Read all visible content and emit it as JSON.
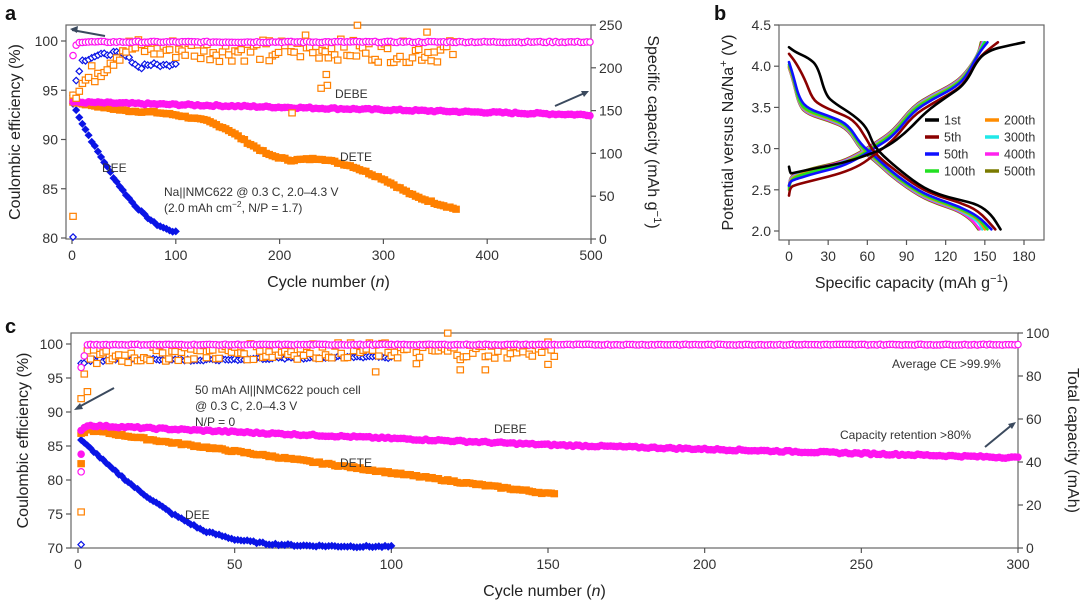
{
  "panels": {
    "a": {
      "label": "a"
    },
    "b": {
      "label": "b"
    },
    "c": {
      "label": "c"
    }
  },
  "colors": {
    "DEE": "#0a14e6",
    "DETE": "#ff8000",
    "DEBE": "#ff14f0",
    "arrow": "#3b4a5e"
  },
  "chart_data": [
    {
      "id": "a",
      "type": "scatter",
      "title": "",
      "xlabel": "Cycle number (n)",
      "ylabel_left": "Coulombic efficiency (%)",
      "ylabel_right": "Specific capacity (mAh g⁻¹)",
      "xlim": [
        0,
        500
      ],
      "ylim_left": [
        80,
        101.5
      ],
      "ylim_right": [
        0,
        250
      ],
      "xticks": [
        0,
        100,
        200,
        300,
        400,
        500
      ],
      "yticks_left": [
        80,
        85,
        90,
        95,
        100
      ],
      "yticks_right": [
        0,
        50,
        100,
        150,
        200,
        250
      ],
      "annotations": [
        "Na||NMC622 @ 0.3 C, 2.0–4.3 V",
        "(2.0 mAh cm⁻², N/P = 1.7)"
      ],
      "series_labels": {
        "DEE": "DEE",
        "DETE": "DETE",
        "DEBE": "DEBE"
      },
      "series": [
        {
          "name": "DEE",
          "quantity": "capacity",
          "axis": "right",
          "x": [
            1,
            5,
            10,
            20,
            30,
            40,
            50,
            60,
            70,
            80,
            90,
            100
          ],
          "values": [
            158,
            148,
            135,
            112,
            92,
            72,
            55,
            40,
            28,
            18,
            12,
            8
          ]
        },
        {
          "name": "DETE",
          "quantity": "capacity",
          "axis": "right",
          "x": [
            1,
            20,
            50,
            80,
            100,
            130,
            150,
            170,
            190,
            210,
            240,
            270,
            300,
            330,
            350,
            370
          ],
          "values": [
            160,
            156,
            150,
            148,
            145,
            138,
            128,
            112,
            98,
            92,
            94,
            85,
            70,
            50,
            42,
            35
          ]
        },
        {
          "name": "DEBE",
          "quantity": "capacity",
          "axis": "right",
          "x": [
            1,
            100,
            200,
            300,
            400,
            500
          ],
          "values": [
            160,
            157,
            154,
            151,
            148,
            145
          ]
        },
        {
          "name": "DEE",
          "quantity": "CE",
          "axis": "left",
          "x": [
            1,
            5,
            10,
            20,
            30,
            40,
            50,
            60,
            65,
            70,
            80,
            90,
            100
          ],
          "values": [
            94.5,
            96.5,
            98,
            98.4,
            98.6,
            98.8,
            98.6,
            97.8,
            97.2,
            97.6,
            97.6,
            97.5,
            97.8
          ]
        },
        {
          "name": "DETE",
          "quantity": "CE",
          "axis": "left",
          "x": [
            1,
            50,
            100,
            150,
            200,
            250,
            300,
            350,
            370
          ],
          "values": [
            95,
            99.4,
            99.3,
            99.1,
            99.2,
            99.3,
            99.0,
            99.0,
            99.2
          ]
        },
        {
          "name": "DEBE",
          "quantity": "CE",
          "axis": "left",
          "x": [
            1,
            5,
            100,
            200,
            300,
            400,
            500
          ],
          "values": [
            98.5,
            99.9,
            99.9,
            99.9,
            99.9,
            99.9,
            99.9
          ]
        }
      ]
    },
    {
      "id": "b",
      "type": "line",
      "title": "",
      "xlabel": "Specific capacity (mAh g⁻¹)",
      "ylabel": "Potential versus Na/Na⁺ (V)",
      "xlim": [
        -8,
        195
      ],
      "ylim": [
        1.95,
        4.5
      ],
      "xticks": [
        0,
        30,
        60,
        90,
        120,
        150,
        180
      ],
      "yticks": [
        2.0,
        2.5,
        3.0,
        3.5,
        4.0,
        4.5
      ],
      "legend": {
        "position": "center-right",
        "entries": [
          "1st",
          "5th",
          "50th",
          "100th",
          "200th",
          "300th",
          "400th",
          "500th"
        ]
      },
      "series": [
        {
          "name": "1st",
          "color": "#000000",
          "charge": {
            "x": [
              0,
              1,
              2,
              8,
              20,
              40,
              60,
              75,
              90,
              105,
              120,
              135,
              145,
              155,
              165,
              180
            ],
            "y": [
              2.78,
              2.7,
              2.7,
              2.72,
              2.76,
              2.82,
              2.92,
              3.02,
              3.2,
              3.45,
              3.62,
              3.78,
              4.1,
              4.2,
              4.24,
              4.29
            ]
          },
          "discharge": {
            "x": [
              0,
              5,
              15,
              22,
              28,
              35,
              50,
              60,
              65,
              80,
              100,
              115,
              130,
              145,
              155,
              162
            ],
            "y": [
              4.23,
              4.17,
              4.1,
              4.0,
              3.65,
              3.55,
              3.4,
              3.25,
              3.02,
              2.8,
              2.55,
              2.44,
              2.38,
              2.32,
              2.2,
              2.02
            ]
          }
        },
        {
          "name": "5th",
          "color": "#8b0000",
          "charge": {
            "x": [
              0,
              1,
              5,
              20,
              40,
              55,
              65,
              80,
              95,
              110,
              125,
              135,
              145,
              155,
              160
            ],
            "y": [
              2.43,
              2.53,
              2.56,
              2.62,
              2.7,
              2.8,
              2.92,
              3.1,
              3.4,
              3.55,
              3.68,
              3.8,
              4.1,
              4.23,
              4.29
            ]
          },
          "discharge": {
            "x": [
              0,
              5,
              12,
              18,
              25,
              35,
              50,
              60,
              65,
              80,
              100,
              115,
              130,
              145,
              158
            ],
            "y": [
              4.15,
              4.05,
              3.85,
              3.6,
              3.52,
              3.45,
              3.35,
              3.1,
              2.95,
              2.75,
              2.52,
              2.42,
              2.35,
              2.25,
              2.02
            ]
          }
        },
        {
          "name": "50th",
          "color": "#1010ff",
          "charge": {
            "x": [
              0,
              1,
              5,
              20,
              40,
              55,
              65,
              80,
              95,
              110,
              125,
              135,
              145,
              152
            ],
            "y": [
              2.55,
              2.6,
              2.63,
              2.7,
              2.78,
              2.9,
              3.0,
              3.15,
              3.45,
              3.6,
              3.72,
              3.85,
              4.15,
              4.29
            ]
          },
          "discharge": {
            "x": [
              0,
              3,
              8,
              15,
              30,
              45,
              55,
              65,
              80,
              100,
              115,
              130,
              145,
              155
            ],
            "y": [
              4.05,
              3.9,
              3.6,
              3.48,
              3.4,
              3.3,
              3.05,
              2.92,
              2.7,
              2.48,
              2.38,
              2.3,
              2.18,
              2.02
            ]
          }
        },
        {
          "name": "100th",
          "color": "#22e022",
          "charge": {
            "x": [
              0,
              1,
              5,
              20,
              40,
              55,
              65,
              80,
              95,
              110,
              125,
              135,
              145,
              150
            ],
            "y": [
              2.5,
              2.6,
              2.66,
              2.73,
              2.8,
              2.92,
              3.02,
              3.18,
              3.48,
              3.62,
              3.74,
              3.87,
              4.15,
              4.29
            ]
          },
          "discharge": {
            "x": [
              0,
              3,
              8,
              15,
              30,
              45,
              55,
              65,
              80,
              100,
              115,
              130,
              145,
              152
            ],
            "y": [
              4.02,
              3.88,
              3.55,
              3.45,
              3.38,
              3.28,
              3.02,
              2.9,
              2.68,
              2.46,
              2.36,
              2.28,
              2.16,
              2.02
            ]
          }
        },
        {
          "name": "200th",
          "color": "#ff8c00",
          "charge": {
            "x": [
              0,
              1,
              5,
              20,
              40,
              55,
              65,
              80,
              95,
              110,
              125,
              135,
              145,
              150
            ],
            "y": [
              2.52,
              2.62,
              2.67,
              2.74,
              2.81,
              2.93,
              3.03,
              3.19,
              3.49,
              3.63,
              3.75,
              3.88,
              4.15,
              4.29
            ]
          },
          "discharge": {
            "x": [
              0,
              3,
              8,
              15,
              30,
              45,
              55,
              65,
              80,
              100,
              115,
              130,
              145,
              150
            ],
            "y": [
              4.0,
              3.86,
              3.54,
              3.44,
              3.37,
              3.27,
              3.01,
              2.89,
              2.67,
              2.45,
              2.35,
              2.27,
              2.15,
              2.02
            ]
          }
        },
        {
          "name": "300th",
          "color": "#20e8e8",
          "charge": {
            "x": [
              0,
              1,
              5,
              20,
              40,
              55,
              65,
              80,
              95,
              110,
              125,
              135,
              145,
              149
            ],
            "y": [
              2.53,
              2.63,
              2.68,
              2.75,
              2.82,
              2.94,
              3.04,
              3.2,
              3.5,
              3.64,
              3.76,
              3.89,
              4.15,
              4.29
            ]
          },
          "discharge": {
            "x": [
              0,
              3,
              8,
              15,
              30,
              45,
              55,
              65,
              80,
              100,
              115,
              130,
              145,
              148
            ],
            "y": [
              4.0,
              3.85,
              3.53,
              3.43,
              3.36,
              3.26,
              3.0,
              2.88,
              2.66,
              2.44,
              2.34,
              2.26,
              2.12,
              2.02
            ]
          }
        },
        {
          "name": "400th",
          "color": "#ff22ee",
          "charge": {
            "x": [
              0,
              1,
              5,
              20,
              40,
              55,
              65,
              80,
              95,
              110,
              125,
              135,
              145,
              148
            ],
            "y": [
              2.54,
              2.64,
              2.69,
              2.76,
              2.83,
              2.95,
              3.05,
              3.21,
              3.51,
              3.65,
              3.77,
              3.9,
              4.15,
              4.29
            ]
          },
          "discharge": {
            "x": [
              0,
              3,
              8,
              15,
              30,
              45,
              55,
              65,
              80,
              100,
              115,
              130,
              140,
              146
            ],
            "y": [
              3.99,
              3.84,
              3.52,
              3.42,
              3.35,
              3.25,
              2.99,
              2.87,
              2.65,
              2.43,
              2.33,
              2.25,
              2.14,
              2.02
            ]
          }
        },
        {
          "name": "500th",
          "color": "#7a7a00",
          "charge": {
            "x": [
              0,
              1,
              5,
              20,
              40,
              55,
              65,
              80,
              95,
              110,
              125,
              135,
              145,
              147
            ],
            "y": [
              2.55,
              2.65,
              2.7,
              2.77,
              2.84,
              2.96,
              3.06,
              3.22,
              3.52,
              3.66,
              3.78,
              3.91,
              4.15,
              4.29
            ]
          },
          "discharge": {
            "x": [
              0,
              3,
              8,
              15,
              30,
              45,
              55,
              65,
              80,
              100,
              115,
              130,
              140,
              145
            ],
            "y": [
              3.98,
              3.83,
              3.51,
              3.41,
              3.34,
              3.24,
              2.98,
              2.86,
              2.64,
              2.42,
              2.32,
              2.24,
              2.13,
              2.02
            ]
          }
        }
      ]
    },
    {
      "id": "c",
      "type": "scatter",
      "title": "",
      "xlabel": "Cycle number (n)",
      "ylabel_left": "Coulombic efficiency (%)",
      "ylabel_right": "Total capacity (mAh)",
      "xlim": [
        0,
        300
      ],
      "ylim_left": [
        70,
        101.6
      ],
      "ylim_right": [
        0,
        100
      ],
      "xticks": [
        0,
        50,
        100,
        150,
        200,
        250,
        300
      ],
      "yticks_left": [
        70,
        75,
        80,
        85,
        90,
        95,
        100
      ],
      "yticks_right": [
        0,
        20,
        40,
        60,
        80,
        100
      ],
      "annotations": [
        "50 mAh Al||NMC622 pouch cell",
        "@ 0.3 C, 2.0–4.3 V",
        "N/P = 0",
        "Average CE >99.9%",
        "Capacity retention >80%"
      ],
      "series_labels": {
        "DEE": "DEE",
        "DETE": "DETE",
        "DEBE": "DEBE"
      },
      "series": [
        {
          "name": "DEE",
          "quantity": "capacity",
          "axis": "right",
          "x": [
            1,
            5,
            10,
            20,
            30,
            40,
            50,
            60,
            70,
            80,
            90,
            100
          ],
          "values": [
            50,
            45,
            38,
            26,
            16,
            8,
            4,
            2,
            1.2,
            0.9,
            0.7,
            0.6
          ]
        },
        {
          "name": "DETE",
          "quantity": "capacity",
          "axis": "right",
          "x": [
            1,
            3,
            25,
            50,
            75,
            100,
            125,
            152
          ],
          "values": [
            53,
            55,
            50,
            45,
            40,
            35,
            30,
            25
          ]
        },
        {
          "name": "DEBE",
          "quantity": "capacity",
          "axis": "right",
          "x": [
            1,
            3,
            50,
            100,
            150,
            200,
            250,
            300
          ],
          "values": [
            55,
            57,
            54,
            51,
            48,
            46,
            44,
            42
          ]
        },
        {
          "name": "DEE",
          "quantity": "CE",
          "axis": "left",
          "x": [
            1,
            5,
            20,
            40,
            60,
            80,
            95,
            100
          ],
          "values": [
            97.3,
            97.6,
            97.8,
            97.6,
            97.9,
            98.0,
            98.2,
            98.0
          ]
        },
        {
          "name": "DETE",
          "quantity": "CE",
          "axis": "left",
          "x": [
            1,
            3,
            30,
            60,
            90,
            120,
            152
          ],
          "values": [
            93,
            98,
            98.8,
            99.0,
            99.2,
            99.0,
            99.3
          ]
        },
        {
          "name": "DEBE",
          "quantity": "CE",
          "axis": "left",
          "x": [
            1,
            3,
            50,
            100,
            150,
            200,
            250,
            300
          ],
          "values": [
            96.5,
            99.9,
            99.9,
            99.9,
            99.9,
            99.9,
            99.9,
            99.9
          ]
        }
      ]
    }
  ]
}
